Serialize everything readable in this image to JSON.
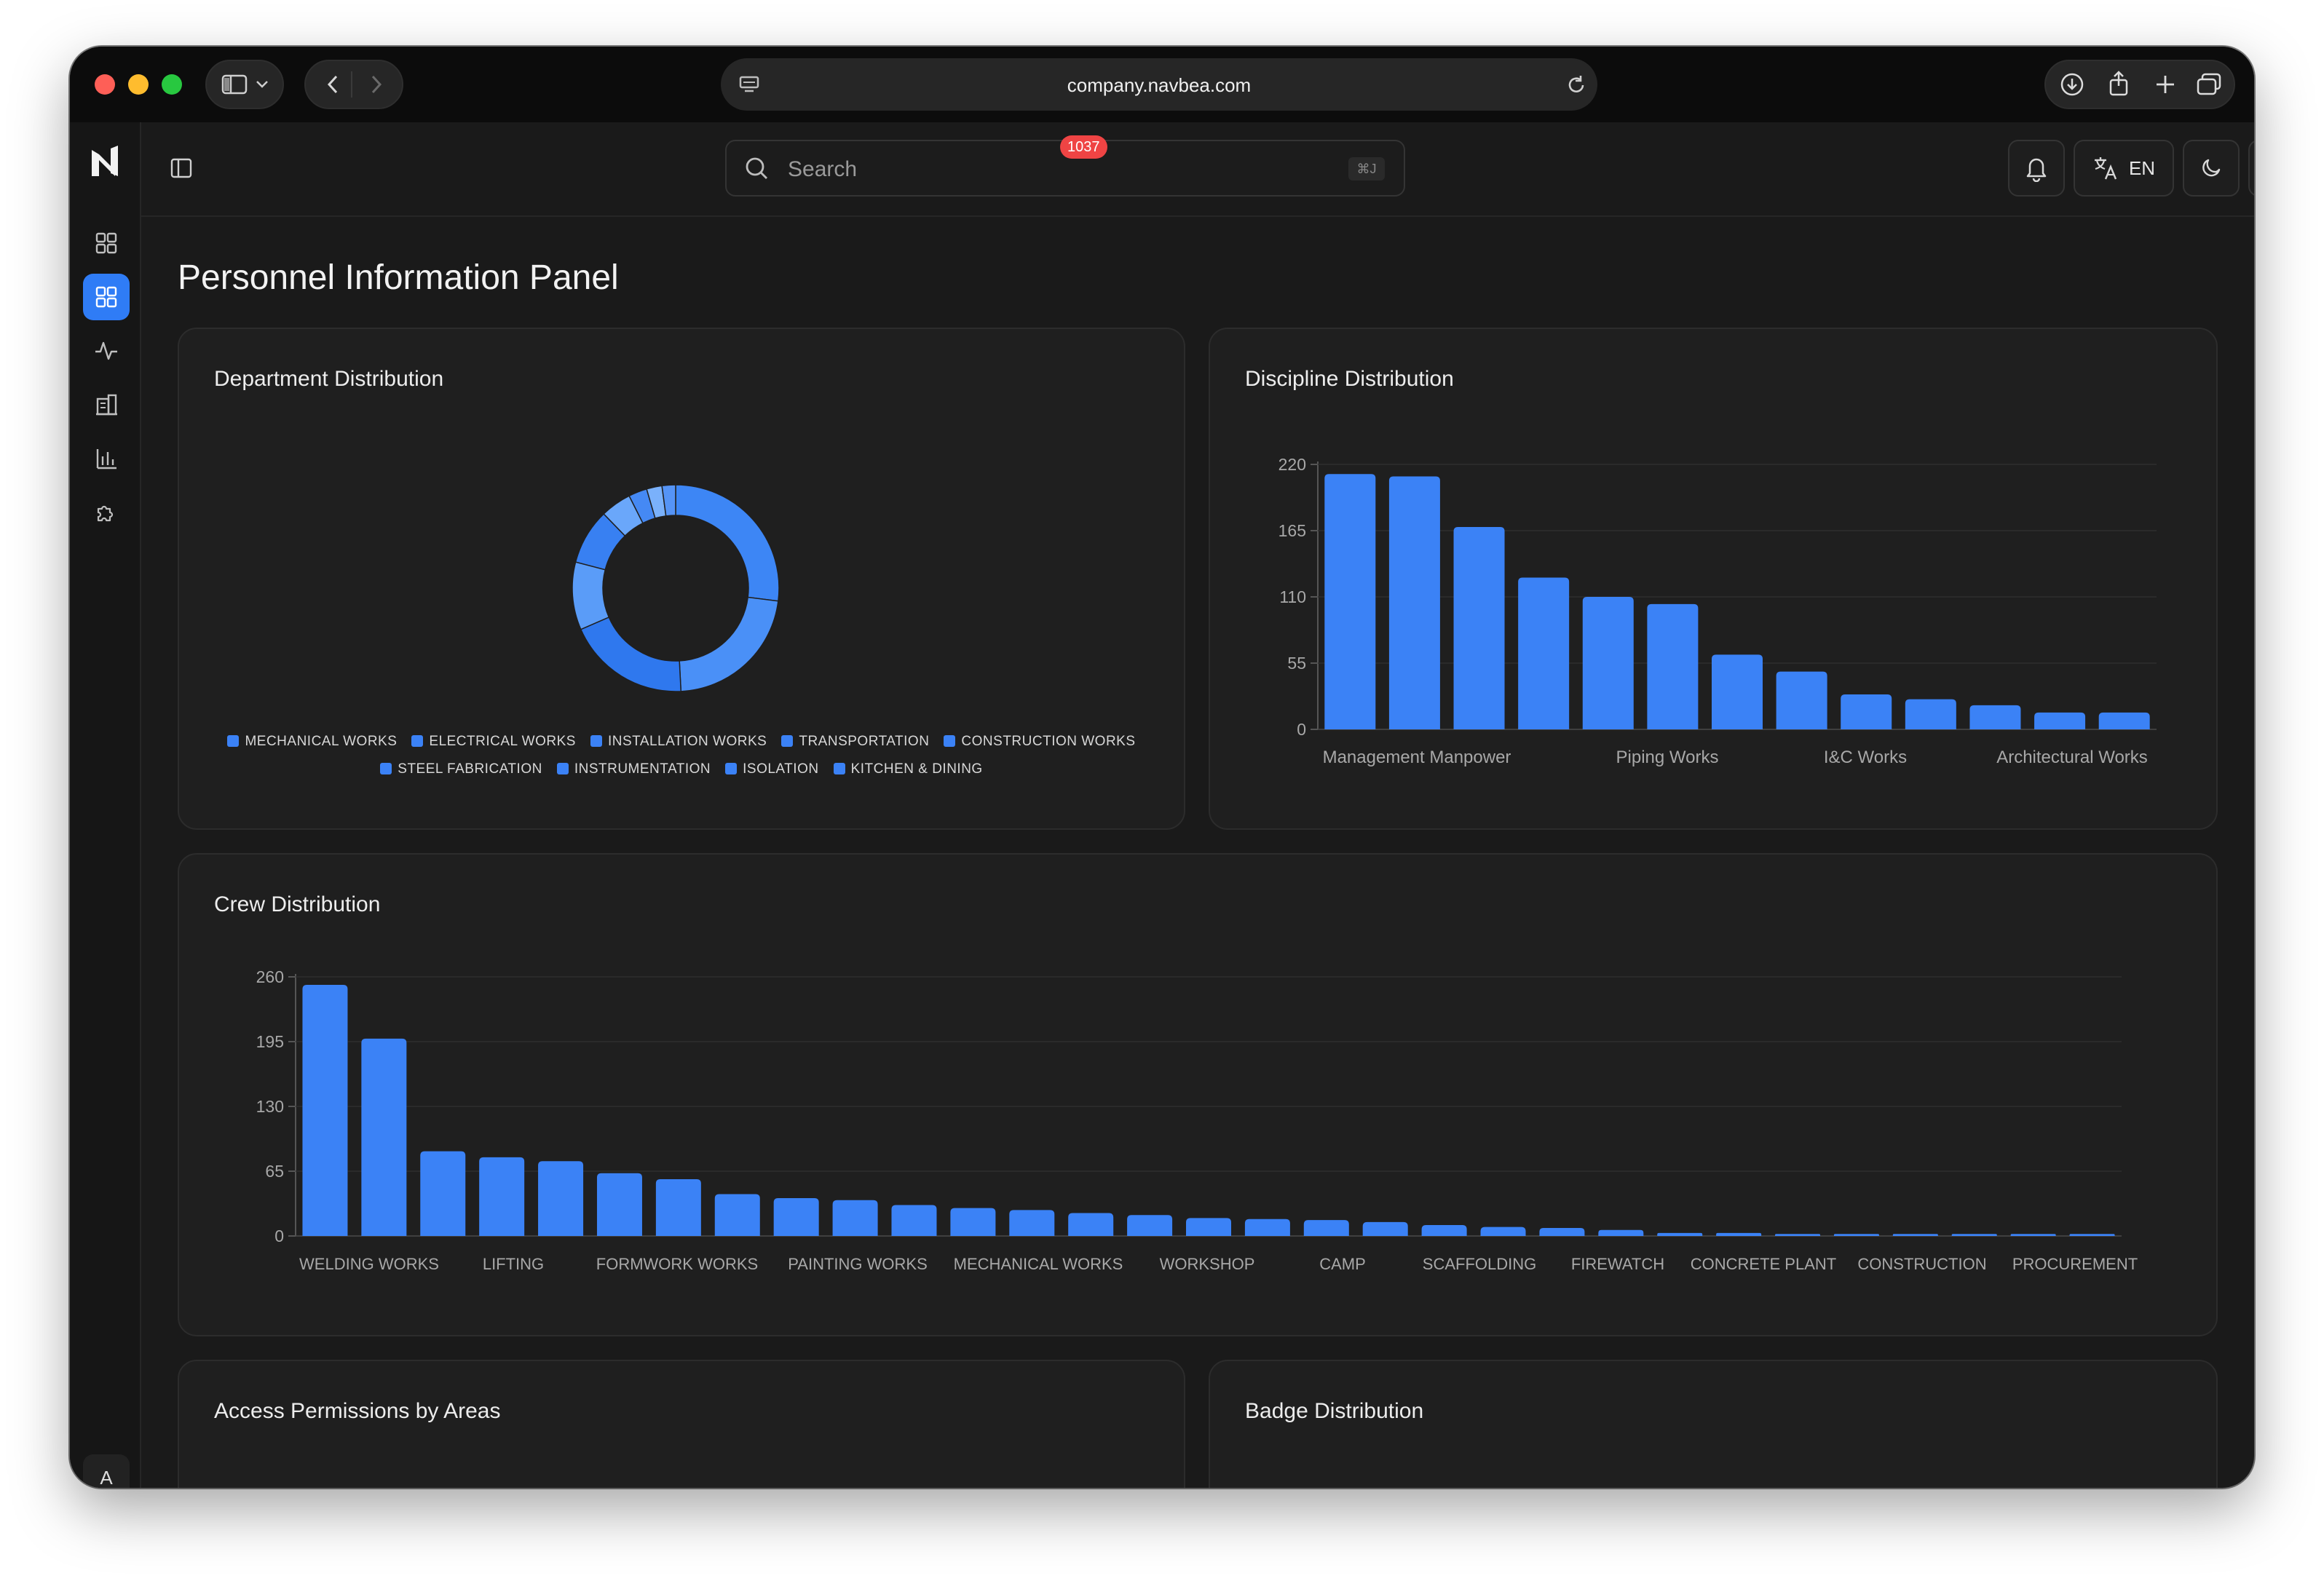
{
  "browser": {
    "url": "company.navbea.com"
  },
  "topbar": {
    "search_placeholder": "Search",
    "search_shortcut": "⌘J",
    "notification_count": "1037",
    "language": "EN"
  },
  "sidebar": {
    "avatar_initial": "A",
    "items": [
      {
        "icon": "dashboard-icon",
        "active": false
      },
      {
        "icon": "dashboard-icon",
        "active": true
      },
      {
        "icon": "activity-icon",
        "active": false
      },
      {
        "icon": "building-icon",
        "active": false
      },
      {
        "icon": "bar-chart-icon",
        "active": false
      },
      {
        "icon": "puzzle-icon",
        "active": false
      }
    ]
  },
  "page": {
    "title": "Personnel Information Panel"
  },
  "cards": {
    "department": {
      "title": "Department Distribution"
    },
    "discipline": {
      "title": "Discipline Distribution"
    },
    "crew": {
      "title": "Crew Distribution"
    },
    "access": {
      "title": "Access Permissions by Areas"
    },
    "badge": {
      "title": "Badge Distribution"
    }
  },
  "colors": {
    "accent": "#3b82f6",
    "accent_active": "#2f7cf6",
    "badge_red": "#ef4444",
    "background": "#1a1a1a",
    "card": "#1f1f1f"
  },
  "chart_data": [
    {
      "type": "pie",
      "title": "Department Distribution",
      "legend_rows": [
        [
          "MECHANICAL WORKS",
          "ELECTRICAL WORKS",
          "INSTALLATION WORKS",
          "TRANSPORTATION",
          "CONSTRUCTION WORKS"
        ],
        [
          "STEEL FABRICATION",
          "INSTRUMENTATION",
          "ISOLATION",
          "KITCHEN & DINING"
        ]
      ],
      "categories": [
        "MECHANICAL WORKS",
        "ELECTRICAL WORKS",
        "INSTALLATION WORKS",
        "TRANSPORTATION",
        "CONSTRUCTION WORKS",
        "STEEL FABRICATION",
        "INSTRUMENTATION",
        "ISOLATION",
        "KITCHEN & DINING"
      ],
      "values": [
        280,
        230,
        200,
        110,
        90,
        50,
        30,
        25,
        22
      ],
      "colors": [
        "#3d86f5",
        "#4a90f7",
        "#2f78ee",
        "#5a9cf8",
        "#3880f2",
        "#6aa7fa",
        "#4589f4",
        "#7ab1fb",
        "#5594f6"
      ],
      "legend_placement": "bottom"
    },
    {
      "type": "bar",
      "title": "Discipline Distribution",
      "categories": [
        "Management Manpower",
        "",
        "",
        "",
        "Piping Works",
        "",
        "",
        "I&C Works",
        "",
        "",
        "Architectural Works",
        "",
        ""
      ],
      "x_tick_labels": [
        "Management Manpower",
        "Piping Works",
        "I&C Works",
        "Architectural Works"
      ],
      "values": [
        212,
        210,
        168,
        126,
        110,
        104,
        62,
        48,
        29,
        25,
        20,
        14,
        14
      ],
      "yticks": [
        0,
        55,
        110,
        165,
        220
      ],
      "ylim": [
        0,
        220
      ],
      "grid": true
    },
    {
      "type": "bar",
      "title": "Crew Distribution",
      "categories": [
        "WELDING WORKS",
        "",
        "LIFTING",
        "",
        "FORMWORK WORKS",
        "",
        "PAINTING WORKS",
        "",
        "MECHANICAL WORKS",
        "",
        "",
        "WORKSHOP",
        "",
        "CAMP",
        "",
        "SCAFFOLDING",
        "",
        "FIREWATCH",
        "",
        "CONCRETE PLANT",
        "",
        "CONSTRUCTION",
        "",
        "PROCUREMENT",
        "",
        "",
        "",
        "",
        "",
        "",
        ""
      ],
      "x_tick_labels": [
        "WELDING WORKS",
        "LIFTING",
        "FORMWORK WORKS",
        "PAINTING WORKS",
        "MECHANICAL WORKS",
        "WORKSHOP",
        "CAMP",
        "SCAFFOLDING",
        "FIREWATCH",
        "CONCRETE PLANT",
        "CONSTRUCTION",
        "PROCUREMENT"
      ],
      "values": [
        252,
        198,
        85,
        79,
        75,
        63,
        57,
        42,
        38,
        36,
        31,
        28,
        26,
        23,
        21,
        18,
        17,
        16,
        14,
        11,
        9,
        8,
        6,
        3,
        3,
        2,
        2,
        2,
        2,
        2,
        2
      ],
      "yticks": [
        0,
        65,
        130,
        195,
        260
      ],
      "ylim": [
        0,
        260
      ],
      "grid": true
    }
  ]
}
